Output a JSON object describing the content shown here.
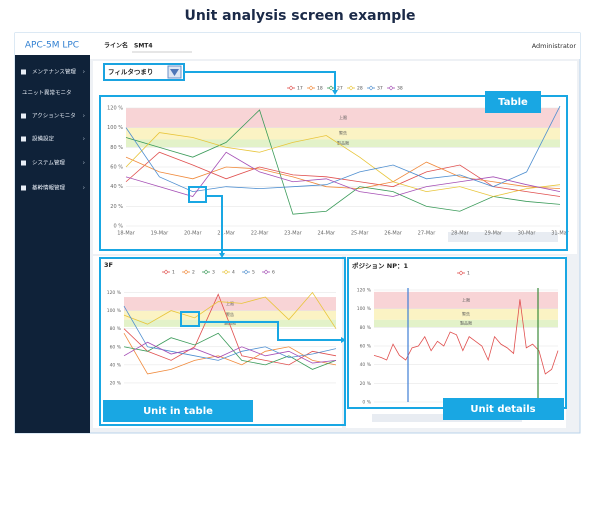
{
  "header": {
    "title": "Unit analysis screen example"
  },
  "app": {
    "logo": "APC-5M LPC",
    "line_label": "ライン名",
    "line_name": "SMT4",
    "user": "Administrator",
    "filter": "フィルタつまり"
  },
  "sidebar": {
    "items": [
      "メンテナンス管理",
      "ユニット異常モニタ",
      "アクションモニタ",
      "設備設定",
      "システム管理",
      "基幹情報管理"
    ]
  },
  "callouts": {
    "table": "Table",
    "unit_in_table": "Unit in table",
    "unit_details": "Unit details"
  },
  "chart_data": [
    {
      "type": "line",
      "categories": [
        "18-Mar",
        "19-Mar",
        "20-Mar",
        "21-Mar",
        "22-Mar",
        "23-Mar",
        "24-Mar",
        "25-Mar",
        "26-Mar",
        "27-Mar",
        "28-Mar",
        "29-Mar",
        "30-Mar",
        "31-Mar"
      ],
      "ylim": [
        0,
        120
      ],
      "yticks": [
        {
          "value": 0,
          "label": "0 %"
        },
        {
          "value": 20,
          "label": "20 %"
        },
        {
          "value": 40,
          "label": "40 %"
        },
        {
          "value": 60,
          "label": "60 %"
        },
        {
          "value": 80,
          "label": "80 %"
        },
        {
          "value": 100,
          "label": "100 %"
        },
        {
          "value": 120,
          "label": "120 %"
        }
      ],
      "grid": true,
      "bands": [
        {
          "from": 100,
          "to": 120,
          "color": "#f8d4d6",
          "label": "上限"
        },
        {
          "from": 88,
          "to": 100,
          "color": "#fbf3c4",
          "label": "警告"
        },
        {
          "from": 80,
          "to": 88,
          "color": "#e3f2c9",
          "label": "製品限"
        }
      ],
      "series": [
        {
          "name": "17",
          "color": "#e0504f",
          "values": [
            45,
            75,
            62,
            48,
            60,
            52,
            50,
            45,
            40,
            55,
            62,
            40,
            35,
            30
          ]
        },
        {
          "name": "18",
          "color": "#f08a3c",
          "values": [
            70,
            55,
            48,
            60,
            58,
            50,
            40,
            38,
            45,
            65,
            50,
            45,
            40,
            38
          ]
        },
        {
          "name": "27",
          "color": "#3b9b5a",
          "values": [
            90,
            80,
            70,
            85,
            118,
            12,
            15,
            40,
            35,
            20,
            15,
            30,
            25,
            22
          ]
        },
        {
          "name": "28",
          "color": "#e8c53a",
          "values": [
            60,
            95,
            90,
            80,
            75,
            85,
            92,
            70,
            45,
            35,
            40,
            30,
            38,
            42
          ]
        },
        {
          "name": "37",
          "color": "#4f8fd0",
          "values": [
            100,
            50,
            35,
            40,
            38,
            40,
            42,
            55,
            62,
            48,
            52,
            40,
            55,
            122
          ]
        },
        {
          "name": "38",
          "color": "#a54fb5",
          "values": [
            50,
            40,
            30,
            75,
            55,
            45,
            48,
            35,
            30,
            40,
            45,
            50,
            42,
            35
          ]
        }
      ]
    },
    {
      "type": "line",
      "title": "3F",
      "ylim": [
        10,
        125
      ],
      "yticks": [
        {
          "value": 20,
          "label": "20 %"
        },
        {
          "value": 40,
          "label": "40 %"
        },
        {
          "value": 60,
          "label": "60 %"
        },
        {
          "value": 80,
          "label": "80 %"
        },
        {
          "value": 100,
          "label": "100 %"
        },
        {
          "value": 120,
          "label": "120 %"
        }
      ],
      "grid": true,
      "bands": [
        {
          "from": 100,
          "to": 115,
          "color": "#f8d4d6",
          "label": "上限"
        },
        {
          "from": 90,
          "to": 100,
          "color": "#fbf3c4",
          "label": "警告"
        },
        {
          "from": 82,
          "to": 90,
          "color": "#e3f2c9",
          "label": "製品限"
        }
      ],
      "series": [
        {
          "name": "1",
          "color": "#e0504f",
          "values": [
            80,
            55,
            45,
            60,
            118,
            50,
            45,
            40,
            55,
            50
          ]
        },
        {
          "name": "2",
          "color": "#f08a3c",
          "values": [
            75,
            30,
            35,
            45,
            50,
            40,
            55,
            60,
            45,
            40
          ]
        },
        {
          "name": "3",
          "color": "#3b9b5a",
          "values": [
            60,
            55,
            70,
            62,
            75,
            45,
            40,
            50,
            35,
            45
          ]
        },
        {
          "name": "4",
          "color": "#e8c53a",
          "values": [
            95,
            85,
            100,
            92,
            110,
            108,
            115,
            90,
            120,
            80
          ]
        },
        {
          "name": "5",
          "color": "#4f8fd0",
          "values": [
            105,
            60,
            55,
            50,
            45,
            55,
            60,
            48,
            52,
            58
          ]
        },
        {
          "name": "6",
          "color": "#a54fb5",
          "values": [
            50,
            65,
            52,
            58,
            48,
            60,
            50,
            55,
            42,
            45
          ]
        }
      ]
    },
    {
      "type": "line",
      "title": "ポジション NP：1",
      "ylim": [
        0,
        120
      ],
      "yticks": [
        {
          "value": 0,
          "label": "0 %"
        },
        {
          "value": 20,
          "label": "20 %"
        },
        {
          "value": 40,
          "label": "40 %"
        },
        {
          "value": 60,
          "label": "60 %"
        },
        {
          "value": 80,
          "label": "80 %"
        },
        {
          "value": 100,
          "label": "100 %"
        },
        {
          "value": 120,
          "label": "120 %"
        }
      ],
      "grid": true,
      "bands": [
        {
          "from": 100,
          "to": 118,
          "color": "#f8d4d6",
          "label": "上限"
        },
        {
          "from": 88,
          "to": 100,
          "color": "#fbf3c4",
          "label": "警告"
        },
        {
          "from": 80,
          "to": 88,
          "color": "#e3f2c9",
          "label": "製品限"
        }
      ],
      "series": [
        {
          "name": "1",
          "color": "#e0504f",
          "values": [
            50,
            48,
            45,
            62,
            50,
            45,
            58,
            60,
            70,
            55,
            65,
            60,
            75,
            72,
            55,
            70,
            65,
            60,
            45,
            70,
            62,
            58,
            52,
            110,
            58,
            62,
            55,
            30,
            35,
            55
          ]
        }
      ]
    }
  ]
}
